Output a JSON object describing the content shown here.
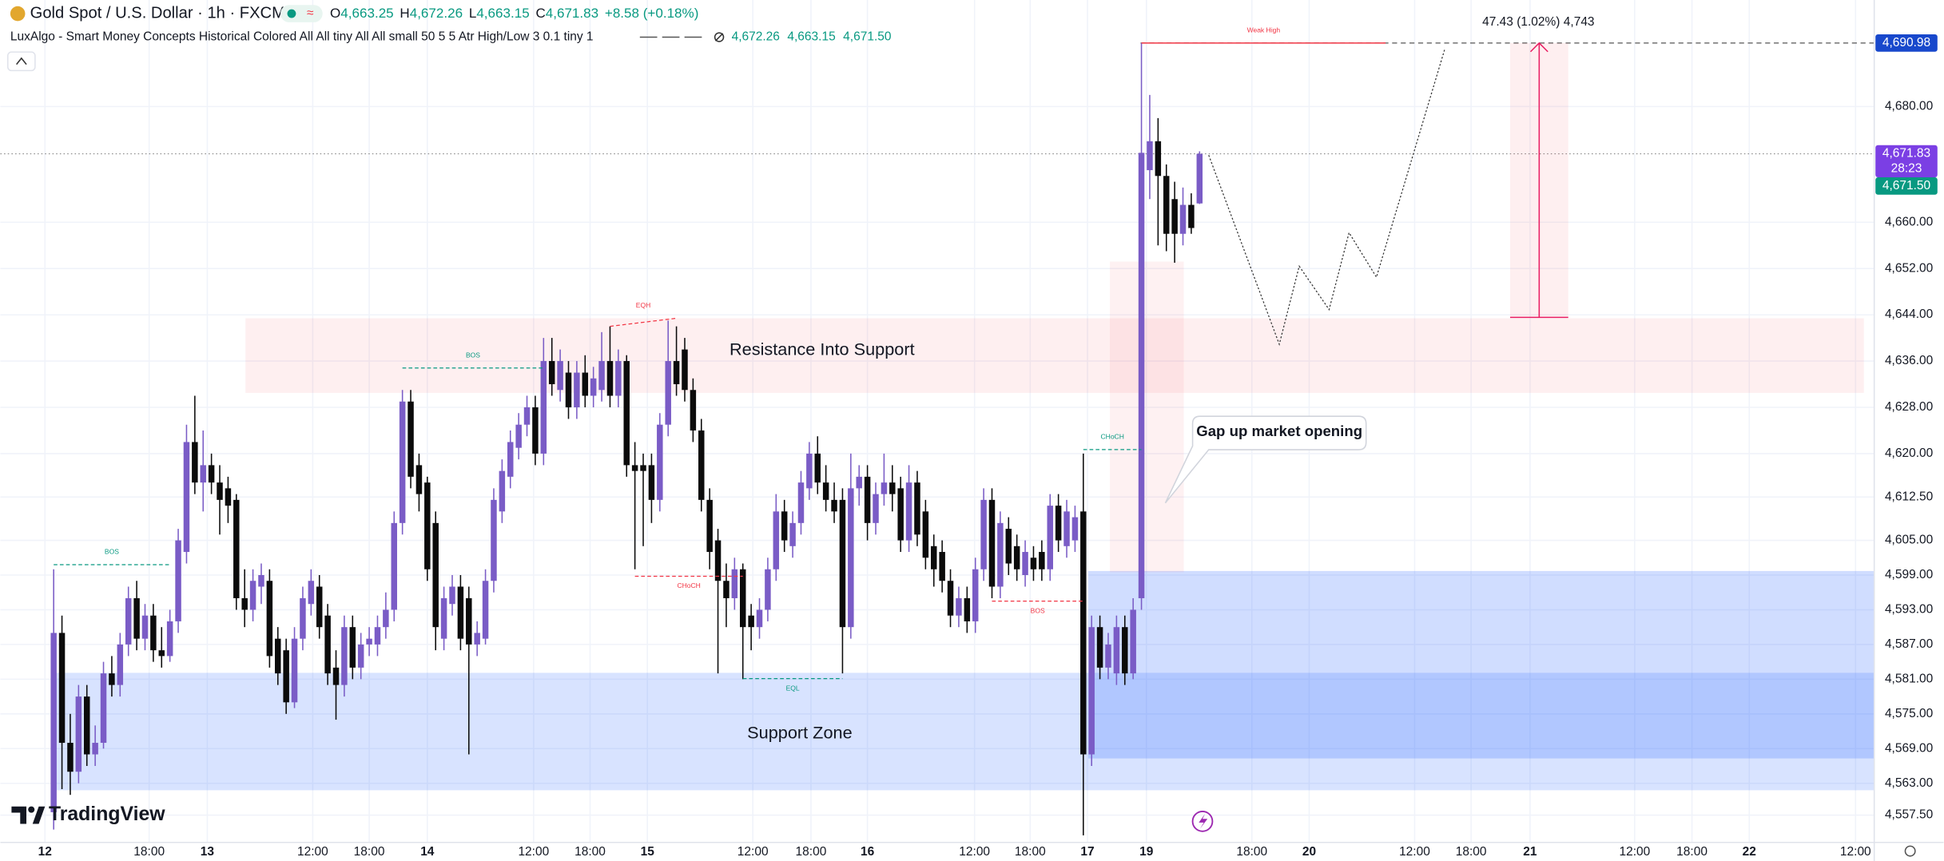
{
  "chart_data": {
    "type": "candlestick",
    "title": "Gold Spot / U.S. Dollar · 1h · FXCM",
    "ohlc_header": [
      {
        "key": "O",
        "value": "4,663.25"
      },
      {
        "key": "H",
        "value": "4,672.26"
      },
      {
        "key": "L",
        "value": "4,663.15"
      },
      {
        "key": "C",
        "value": "4,671.83"
      }
    ],
    "change": "+8.58 (+0.18%)",
    "indicator": "LuxAlgo - Smart Money Concepts Historical Colored All All tiny All All small 50 5 5 Atr High/Low 3 0.1 tiny 1",
    "indicator_values": [
      "4,672.26",
      "4,663.15",
      "4,671.50"
    ],
    "bull_color": "#7a5cc6",
    "bear_color": "#0b0b0b",
    "grid": true,
    "xlim": [
      -6.42,
      219.25
    ],
    "ylim": [
      4552.78,
      4698.42
    ],
    "xticks": [
      {
        "value": -1.05,
        "label": "12"
      },
      {
        "value": 11.5,
        "label": "18:00"
      },
      {
        "value": 18.5,
        "label": "13"
      },
      {
        "value": 31.2,
        "label": "12:00"
      },
      {
        "value": 38,
        "label": "18:00"
      },
      {
        "value": 45,
        "label": "14"
      },
      {
        "value": 57.8,
        "label": "12:00"
      },
      {
        "value": 64.6,
        "label": "18:00"
      },
      {
        "value": 71.5,
        "label": "15"
      },
      {
        "value": 84.2,
        "label": "12:00"
      },
      {
        "value": 91.2,
        "label": "18:00"
      },
      {
        "value": 98,
        "label": "16"
      },
      {
        "value": 110.9,
        "label": "12:00"
      },
      {
        "value": 117.6,
        "label": "18:00"
      },
      {
        "value": 124.5,
        "label": "17"
      },
      {
        "value": 131.6,
        "label": "19"
      },
      {
        "value": 144.3,
        "label": "18:00"
      },
      {
        "value": 151.2,
        "label": "20"
      },
      {
        "value": 163.9,
        "label": "12:00"
      },
      {
        "value": 170.7,
        "label": "18:00"
      },
      {
        "value": 177.8,
        "label": "21"
      },
      {
        "value": 190.4,
        "label": "12:00"
      },
      {
        "value": 197.3,
        "label": "18:00"
      },
      {
        "value": 204.2,
        "label": "22"
      },
      {
        "value": 217,
        "label": "12:00"
      }
    ],
    "yticks": [
      {
        "value": 4680,
        "label": "4,680.00"
      },
      {
        "value": 4660,
        "label": "4,660.00"
      },
      {
        "value": 4652,
        "label": "4,652.00"
      },
      {
        "value": 4644,
        "label": "4,644.00"
      },
      {
        "value": 4636,
        "label": "4,636.00"
      },
      {
        "value": 4628,
        "label": "4,628.00"
      },
      {
        "value": 4620,
        "label": "4,620.00"
      },
      {
        "value": 4612.5,
        "label": "4,612.50"
      },
      {
        "value": 4605,
        "label": "4,605.00"
      },
      {
        "value": 4599,
        "label": "4,599.00"
      },
      {
        "value": 4593,
        "label": "4,593.00"
      },
      {
        "value": 4587,
        "label": "4,587.00"
      },
      {
        "value": 4581,
        "label": "4,581.00"
      },
      {
        "value": 4575,
        "label": "4,575.00"
      },
      {
        "value": 4569,
        "label": "4,569.00"
      },
      {
        "value": 4563,
        "label": "4,563.00"
      },
      {
        "value": 4557.5,
        "label": "4,557.50"
      }
    ],
    "ohlc": [
      [
        4558,
        4600,
        4555,
        4589
      ],
      [
        4589,
        4592,
        4562,
        4570
      ],
      [
        4570,
        4575,
        4561,
        4565
      ],
      [
        4565,
        4580,
        4563,
        4578
      ],
      [
        4578,
        4580,
        4566,
        4568
      ],
      [
        4568,
        4573,
        4566,
        4570
      ],
      [
        4570,
        4584,
        4569,
        4582
      ],
      [
        4582,
        4585,
        4578,
        4580
      ],
      [
        4580,
        4589,
        4578,
        4587
      ],
      [
        4587,
        4597,
        4585,
        4595
      ],
      [
        4595,
        4598,
        4586,
        4588
      ],
      [
        4588,
        4594,
        4586,
        4592
      ],
      [
        4592,
        4594,
        4584,
        4586
      ],
      [
        4586,
        4590,
        4583,
        4585
      ],
      [
        4585,
        4593,
        4584,
        4591
      ],
      [
        4591,
        4607,
        4589,
        4605
      ],
      [
        4603,
        4625,
        4601,
        4622
      ],
      [
        4622,
        4630,
        4613,
        4615
      ],
      [
        4615,
        4624,
        4610,
        4618
      ],
      [
        4618,
        4620,
        4613,
        4615
      ],
      [
        4615,
        4618,
        4606,
        4612
      ],
      [
        4614,
        4616,
        4608,
        4611
      ],
      [
        4612,
        4613,
        4593,
        4595
      ],
      [
        4595,
        4600,
        4590,
        4593
      ],
      [
        4593,
        4600,
        4591,
        4598
      ],
      [
        4597,
        4601,
        4594,
        4599
      ],
      [
        4598,
        4600,
        4583,
        4585
      ],
      [
        4588,
        4590,
        4580,
        4582
      ],
      [
        4586,
        4588,
        4575,
        4577
      ],
      [
        4577,
        4590,
        4576,
        4588
      ],
      [
        4588,
        4597,
        4586,
        4595
      ],
      [
        4594,
        4600,
        4592,
        4598
      ],
      [
        4597,
        4599,
        4588,
        4590
      ],
      [
        4592,
        4594,
        4580,
        4582
      ],
      [
        4583,
        4586,
        4574,
        4580
      ],
      [
        4580,
        4592,
        4578,
        4590
      ],
      [
        4590,
        4592,
        4581,
        4583
      ],
      [
        4583,
        4589,
        4581,
        4587
      ],
      [
        4587,
        4590,
        4585,
        4588
      ],
      [
        4587,
        4592,
        4585,
        4590
      ],
      [
        4590,
        4596,
        4588,
        4593
      ],
      [
        4593,
        4610,
        4591,
        4608
      ],
      [
        4608,
        4631,
        4606,
        4629
      ],
      [
        4629,
        4631,
        4614,
        4616
      ],
      [
        4618,
        4620,
        4610,
        4613
      ],
      [
        4615,
        4616,
        4598,
        4600
      ],
      [
        4608,
        4610,
        4586,
        4590
      ],
      [
        4588,
        4597,
        4586,
        4595
      ],
      [
        4594,
        4599,
        4592,
        4597
      ],
      [
        4597,
        4599,
        4586,
        4588
      ],
      [
        4595,
        4597,
        4568,
        4587
      ],
      [
        4587,
        4591,
        4585,
        4589
      ],
      [
        4588,
        4600,
        4587,
        4598
      ],
      [
        4598,
        4614,
        4596,
        4612
      ],
      [
        4610,
        4619,
        4608,
        4617
      ],
      [
        4616,
        4624,
        4614,
        4622
      ],
      [
        4621,
        4627,
        4619,
        4625
      ],
      [
        4625,
        4630,
        4623,
        4628
      ],
      [
        4628,
        4630,
        4618,
        4620
      ],
      [
        4620,
        4640,
        4618,
        4636
      ],
      [
        4636,
        4640,
        4630,
        4632
      ],
      [
        4631,
        4638,
        4629,
        4636
      ],
      [
        4634,
        4636,
        4626,
        4628
      ],
      [
        4628,
        4636,
        4626,
        4634
      ],
      [
        4634,
        4637,
        4628,
        4630
      ],
      [
        4630,
        4635,
        4628,
        4633
      ],
      [
        4631,
        4641,
        4629,
        4636
      ],
      [
        4636,
        4642,
        4628,
        4630
      ],
      [
        4630,
        4638,
        4628,
        4636
      ],
      [
        4636,
        4637,
        4616,
        4618
      ],
      [
        4618,
        4622,
        4600,
        4617
      ],
      [
        4618,
        4620,
        4604,
        4617
      ],
      [
        4618,
        4620,
        4608,
        4612
      ],
      [
        4612,
        4627,
        4610,
        4625
      ],
      [
        4625,
        4643,
        4623,
        4636
      ],
      [
        4636,
        4642,
        4630,
        4632
      ],
      [
        4638,
        4640,
        4629,
        4631
      ],
      [
        4631,
        4633,
        4622,
        4624
      ],
      [
        4624,
        4626,
        4610,
        4612
      ],
      [
        4612,
        4614,
        4600,
        4603
      ],
      [
        4605,
        4607,
        4582,
        4598
      ],
      [
        4598,
        4601,
        4590,
        4595
      ],
      [
        4595,
        4602,
        4593,
        4600
      ],
      [
        4600,
        4601,
        4581,
        4590
      ],
      [
        4592,
        4594,
        4586,
        4590
      ],
      [
        4590,
        4595,
        4588,
        4593
      ],
      [
        4593,
        4602,
        4591,
        4600
      ],
      [
        4600,
        4613,
        4598,
        4610
      ],
      [
        4610,
        4612,
        4603,
        4605
      ],
      [
        4604,
        4610,
        4602,
        4608
      ],
      [
        4608,
        4617,
        4606,
        4615
      ],
      [
        4614,
        4622,
        4612,
        4620
      ],
      [
        4620,
        4623,
        4613,
        4615
      ],
      [
        4615,
        4618,
        4610,
        4612
      ],
      [
        4612,
        4615,
        4608,
        4610
      ],
      [
        4612,
        4614,
        4582,
        4590
      ],
      [
        4590,
        4620,
        4588,
        4614
      ],
      [
        4614,
        4618,
        4611,
        4616
      ],
      [
        4616,
        4618,
        4605,
        4608
      ],
      [
        4608,
        4615,
        4606,
        4613
      ],
      [
        4613,
        4620,
        4611,
        4615
      ],
      [
        4615,
        4618,
        4610,
        4613
      ],
      [
        4614,
        4616,
        4603,
        4605
      ],
      [
        4605,
        4618,
        4603,
        4615
      ],
      [
        4615,
        4617,
        4604,
        4606
      ],
      [
        4610,
        4612,
        4600,
        4602
      ],
      [
        4604,
        4606,
        4597,
        4600
      ],
      [
        4603,
        4605,
        4596,
        4598
      ],
      [
        4598,
        4600,
        4590,
        4592
      ],
      [
        4592,
        4597,
        4590,
        4595
      ],
      [
        4595,
        4597,
        4589,
        4591
      ],
      [
        4591,
        4602,
        4589,
        4600
      ],
      [
        4600,
        4614,
        4598,
        4612
      ],
      [
        4612,
        4614,
        4595,
        4597
      ],
      [
        4597,
        4610,
        4595,
        4608
      ],
      [
        4607,
        4609,
        4599,
        4601
      ],
      [
        4604,
        4606,
        4598,
        4600
      ],
      [
        4599,
        4605,
        4597,
        4603
      ],
      [
        4602,
        4604,
        4598,
        4600
      ],
      [
        4603,
        4605,
        4598,
        4600
      ],
      [
        4600,
        4613,
        4598,
        4611
      ],
      [
        4611,
        4613,
        4603,
        4605
      ],
      [
        4604,
        4612,
        4602,
        4610
      ],
      [
        4605,
        4611,
        4603,
        4609
      ],
      [
        4610,
        4620,
        4554,
        4568
      ],
      [
        4568,
        4592,
        4566,
        4590
      ],
      [
        4590,
        4592,
        4581,
        4583
      ],
      [
        4583,
        4589,
        4581,
        4587
      ],
      [
        4582,
        4592,
        4580,
        4590
      ],
      [
        4590,
        4592,
        4580,
        4582
      ],
      [
        4582,
        4595,
        4581,
        4593
      ],
      [
        4595,
        4690.98,
        4593,
        4672
      ],
      [
        4669,
        4682,
        4664,
        4674
      ],
      [
        4674,
        4678,
        4656,
        4668
      ],
      [
        4668,
        4670,
        4655,
        4658
      ],
      [
        4664,
        4667,
        4653,
        4658
      ],
      [
        4658,
        4666,
        4656,
        4663
      ],
      [
        4663,
        4665,
        4658,
        4659
      ],
      [
        4663.25,
        4672.26,
        4663.15,
        4671.83
      ]
    ],
    "zones": [
      {
        "label": "Resistance Into Support",
        "top": 4643.4,
        "bottom": 4630.5,
        "color": "#f23645"
      },
      {
        "label": "Support Zone",
        "top": 4582.1,
        "bottom": 4561.8,
        "color": "#2962ff"
      },
      {
        "top": 4599.7,
        "bottom": 4567.3,
        "color": "#2962ff"
      },
      {
        "top": 4653.2,
        "bottom": 4599.5,
        "color": "#f23645"
      }
    ],
    "structures": [
      {
        "label": "BOS",
        "prices": [
          4600.8
        ],
        "color": "#089981"
      },
      {
        "label": "BOS",
        "prices": [
          4634.8
        ],
        "color": "#089981"
      },
      {
        "label": "EQH",
        "prices": [
          4642,
          4643.4
        ],
        "color": "#f23645"
      },
      {
        "label": "CHoCH",
        "prices": [
          4598.8
        ],
        "color": "#f23645"
      },
      {
        "label": "EQL",
        "prices": [
          4581.1
        ],
        "color": "#089981"
      },
      {
        "label": "BOS",
        "prices": [
          4594.5
        ],
        "color": "#f23645"
      },
      {
        "label": "CHoCH",
        "prices": [
          4620.7
        ],
        "color": "#089981"
      },
      {
        "label": "Weak High",
        "prices": [
          4690.98
        ],
        "color": "#f23645"
      }
    ],
    "projection": [
      4671.6,
      4638.9,
      4652.4,
      4644.9,
      4658.2,
      4650.5,
      4689.8
    ],
    "measure": {
      "top": 4690.98,
      "bottom": 4643.55,
      "label": "47.43 (1.02%) 4,743"
    },
    "annotation": "Gap up market opening",
    "price_labels": [
      {
        "value": 4690.98,
        "label": "4,690.98",
        "color": "#1848cc"
      },
      {
        "value": 4671.83,
        "label": "4,671.83",
        "color": "#7b3fe4",
        "countdown": "28:23"
      },
      {
        "value": 4671.5,
        "label": "4,671.50",
        "color": "#089981"
      }
    ],
    "brand": "TradingView"
  }
}
